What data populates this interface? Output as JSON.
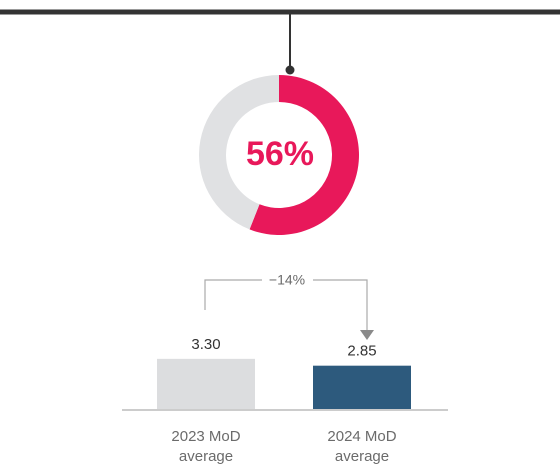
{
  "chart_data": [
    {
      "type": "donut",
      "values": [
        56,
        44
      ],
      "colors": [
        "#e8185a",
        "#e0e1e3"
      ],
      "center_label": "56%"
    },
    {
      "type": "bar",
      "categories": [
        "2023 MoD average",
        "2024 MoD average"
      ],
      "values": [
        3.3,
        2.85
      ],
      "value_labels": [
        "3.30",
        "2.85"
      ],
      "colors": [
        "#dcdddf",
        "#2d5a7d"
      ],
      "annotation": "−14%"
    }
  ]
}
